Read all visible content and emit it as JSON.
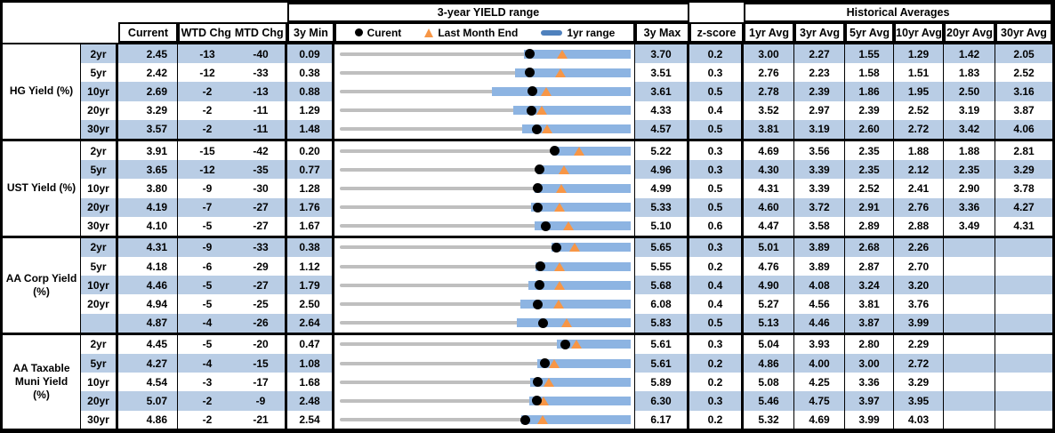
{
  "colors": {
    "stripe": "#B9CDE5",
    "bar": "#8DB4E2",
    "legend_bar": "#4F81BD",
    "triangle": "#F79646",
    "track": "#BFBFBF"
  },
  "chart_data": {
    "type": "table",
    "header": {
      "range_title": "3-year YIELD range",
      "hist_title": "Historical Averages",
      "current": "Current",
      "wtd_chg": "WTD Chg",
      "mtd_chg": "MTD Chg",
      "min_3y": "3y Min",
      "max_3y": "3y Max",
      "z_score": "z-score",
      "avg_cols": [
        "1yr Avg",
        "3yr Avg",
        "5yr Avg",
        "10yr Avg",
        "20yr Avg",
        "30yr Avg"
      ]
    },
    "legend": {
      "current": "Curent",
      "last_month_end": "Last Month End",
      "range": "1yr range"
    },
    "groups": [
      {
        "label": "HG Yield (%)",
        "rows": [
          {
            "tenor": "2yr",
            "current": "2.45",
            "wtd_chg": "-13",
            "mtd_chg": "-40",
            "min_3y": "0.09",
            "max_3y": "3.70",
            "z_score": "0.2",
            "avgs": [
              "3.00",
              "2.27",
              "1.55",
              "1.29",
              "1.42",
              "2.05"
            ],
            "range": {
              "min": 0.09,
              "max": 3.7,
              "bar_lo": 2.38,
              "bar_hi": 3.7,
              "current": 2.45,
              "last_month_end": 2.85
            }
          },
          {
            "tenor": "5yr",
            "current": "2.42",
            "wtd_chg": "-12",
            "mtd_chg": "-33",
            "min_3y": "0.38",
            "max_3y": "3.51",
            "z_score": "0.3",
            "avgs": [
              "2.76",
              "2.23",
              "1.58",
              "1.51",
              "1.83",
              "2.52"
            ],
            "range": {
              "min": 0.38,
              "max": 3.51,
              "bar_lo": 2.27,
              "bar_hi": 3.51,
              "current": 2.42,
              "last_month_end": 2.75
            }
          },
          {
            "tenor": "10yr",
            "current": "2.69",
            "wtd_chg": "-2",
            "mtd_chg": "-13",
            "min_3y": "0.88",
            "max_3y": "3.61",
            "z_score": "0.5",
            "avgs": [
              "2.78",
              "2.39",
              "1.86",
              "1.95",
              "2.50",
              "3.16"
            ],
            "range": {
              "min": 0.88,
              "max": 3.61,
              "bar_lo": 2.31,
              "bar_hi": 3.61,
              "current": 2.69,
              "last_month_end": 2.82
            }
          },
          {
            "tenor": "20yr",
            "current": "3.29",
            "wtd_chg": "-2",
            "mtd_chg": "-11",
            "min_3y": "1.29",
            "max_3y": "4.33",
            "z_score": "0.4",
            "avgs": [
              "3.52",
              "2.97",
              "2.39",
              "2.52",
              "3.19",
              "3.87"
            ],
            "range": {
              "min": 1.29,
              "max": 4.33,
              "bar_lo": 3.1,
              "bar_hi": 4.33,
              "current": 3.29,
              "last_month_end": 3.4
            }
          },
          {
            "tenor": "30yr",
            "current": "3.57",
            "wtd_chg": "-2",
            "mtd_chg": "-11",
            "min_3y": "1.48",
            "max_3y": "4.57",
            "z_score": "0.5",
            "avgs": [
              "3.81",
              "3.19",
              "2.60",
              "2.72",
              "3.42",
              "4.06"
            ],
            "range": {
              "min": 1.48,
              "max": 4.57,
              "bar_lo": 3.42,
              "bar_hi": 4.57,
              "current": 3.57,
              "last_month_end": 3.68
            }
          }
        ]
      },
      {
        "label": "UST Yield (%)",
        "rows": [
          {
            "tenor": "2yr",
            "current": "3.91",
            "wtd_chg": "-15",
            "mtd_chg": "-42",
            "min_3y": "0.20",
            "max_3y": "5.22",
            "z_score": "0.3",
            "avgs": [
              "4.69",
              "3.56",
              "2.35",
              "1.88",
              "1.88",
              "2.81"
            ],
            "range": {
              "min": 0.2,
              "max": 5.22,
              "bar_lo": 3.87,
              "bar_hi": 5.22,
              "current": 3.91,
              "last_month_end": 4.33
            }
          },
          {
            "tenor": "5yr",
            "current": "3.65",
            "wtd_chg": "-12",
            "mtd_chg": "-35",
            "min_3y": "0.77",
            "max_3y": "4.96",
            "z_score": "0.3",
            "avgs": [
              "4.30",
              "3.39",
              "2.35",
              "2.12",
              "2.35",
              "3.29"
            ],
            "range": {
              "min": 0.77,
              "max": 4.96,
              "bar_lo": 3.62,
              "bar_hi": 4.96,
              "current": 3.65,
              "last_month_end": 4.0
            }
          },
          {
            "tenor": "10yr",
            "current": "3.80",
            "wtd_chg": "-9",
            "mtd_chg": "-30",
            "min_3y": "1.28",
            "max_3y": "4.99",
            "z_score": "0.5",
            "avgs": [
              "4.31",
              "3.39",
              "2.52",
              "2.41",
              "2.90",
              "3.78"
            ],
            "range": {
              "min": 1.28,
              "max": 4.99,
              "bar_lo": 3.77,
              "bar_hi": 4.99,
              "current": 3.8,
              "last_month_end": 4.1
            }
          },
          {
            "tenor": "20yr",
            "current": "4.19",
            "wtd_chg": "-7",
            "mtd_chg": "-27",
            "min_3y": "1.76",
            "max_3y": "5.33",
            "z_score": "0.5",
            "avgs": [
              "4.60",
              "3.72",
              "2.91",
              "2.76",
              "3.36",
              "4.27"
            ],
            "range": {
              "min": 1.76,
              "max": 5.33,
              "bar_lo": 4.11,
              "bar_hi": 5.33,
              "current": 4.19,
              "last_month_end": 4.46
            }
          },
          {
            "tenor": "30yr",
            "current": "4.10",
            "wtd_chg": "-5",
            "mtd_chg": "-27",
            "min_3y": "1.67",
            "max_3y": "5.10",
            "z_score": "0.6",
            "avgs": [
              "4.47",
              "3.58",
              "2.89",
              "2.88",
              "3.49",
              "4.31"
            ],
            "range": {
              "min": 1.67,
              "max": 5.1,
              "bar_lo": 3.97,
              "bar_hi": 5.1,
              "current": 4.1,
              "last_month_end": 4.37
            }
          }
        ]
      },
      {
        "label": "AA Corp Yield (%)",
        "rows": [
          {
            "tenor": "2yr",
            "current": "4.31",
            "wtd_chg": "-9",
            "mtd_chg": "-33",
            "min_3y": "0.38",
            "max_3y": "5.65",
            "z_score": "0.3",
            "avgs": [
              "5.01",
              "3.89",
              "2.68",
              "2.26",
              "",
              ""
            ],
            "range": {
              "min": 0.38,
              "max": 5.65,
              "bar_lo": 4.22,
              "bar_hi": 5.65,
              "current": 4.31,
              "last_month_end": 4.64
            }
          },
          {
            "tenor": "5yr",
            "current": "4.18",
            "wtd_chg": "-6",
            "mtd_chg": "-29",
            "min_3y": "1.12",
            "max_3y": "5.55",
            "z_score": "0.2",
            "avgs": [
              "4.76",
              "3.89",
              "2.87",
              "2.70",
              "",
              ""
            ],
            "range": {
              "min": 1.12,
              "max": 5.55,
              "bar_lo": 4.1,
              "bar_hi": 5.55,
              "current": 4.18,
              "last_month_end": 4.47
            }
          },
          {
            "tenor": "10yr",
            "current": "4.46",
            "wtd_chg": "-5",
            "mtd_chg": "-27",
            "min_3y": "1.79",
            "max_3y": "5.68",
            "z_score": "0.4",
            "avgs": [
              "4.90",
              "4.08",
              "3.24",
              "3.20",
              "",
              ""
            ],
            "range": {
              "min": 1.79,
              "max": 5.68,
              "bar_lo": 4.31,
              "bar_hi": 5.68,
              "current": 4.46,
              "last_month_end": 4.73
            }
          },
          {
            "tenor": "20yr",
            "current": "4.94",
            "wtd_chg": "-5",
            "mtd_chg": "-25",
            "min_3y": "2.50",
            "max_3y": "6.08",
            "z_score": "0.4",
            "avgs": [
              "5.27",
              "4.56",
              "3.81",
              "3.76",
              "",
              ""
            ],
            "range": {
              "min": 2.5,
              "max": 6.08,
              "bar_lo": 4.72,
              "bar_hi": 6.08,
              "current": 4.94,
              "last_month_end": 5.19
            }
          },
          {
            "tenor": "",
            "current": "4.87",
            "wtd_chg": "-4",
            "mtd_chg": "-26",
            "min_3y": "2.64",
            "max_3y": "5.83",
            "z_score": "0.5",
            "avgs": [
              "5.13",
              "4.46",
              "3.87",
              "3.99",
              "",
              ""
            ],
            "range": {
              "min": 2.64,
              "max": 5.83,
              "bar_lo": 4.58,
              "bar_hi": 5.83,
              "current": 4.87,
              "last_month_end": 5.13
            }
          }
        ]
      },
      {
        "label": "AA Taxable Muni Yield (%)",
        "rows": [
          {
            "tenor": "2yr",
            "current": "4.45",
            "wtd_chg": "-5",
            "mtd_chg": "-20",
            "min_3y": "0.47",
            "max_3y": "5.61",
            "z_score": "0.3",
            "avgs": [
              "5.04",
              "3.93",
              "2.80",
              "2.29",
              "",
              ""
            ],
            "range": {
              "min": 0.47,
              "max": 5.61,
              "bar_lo": 4.3,
              "bar_hi": 5.61,
              "current": 4.45,
              "last_month_end": 4.65
            }
          },
          {
            "tenor": "5yr",
            "current": "4.27",
            "wtd_chg": "-4",
            "mtd_chg": "-15",
            "min_3y": "1.08",
            "max_3y": "5.61",
            "z_score": "0.2",
            "avgs": [
              "4.86",
              "4.00",
              "3.00",
              "2.72",
              "",
              ""
            ],
            "range": {
              "min": 1.08,
              "max": 5.61,
              "bar_lo": 4.15,
              "bar_hi": 5.61,
              "current": 4.27,
              "last_month_end": 4.42
            }
          },
          {
            "tenor": "10yr",
            "current": "4.54",
            "wtd_chg": "-3",
            "mtd_chg": "-17",
            "min_3y": "1.68",
            "max_3y": "5.89",
            "z_score": "0.2",
            "avgs": [
              "5.08",
              "4.25",
              "3.36",
              "3.29",
              "",
              ""
            ],
            "range": {
              "min": 1.68,
              "max": 5.89,
              "bar_lo": 4.44,
              "bar_hi": 5.89,
              "current": 4.54,
              "last_month_end": 4.71
            }
          },
          {
            "tenor": "20yr",
            "current": "5.07",
            "wtd_chg": "-2",
            "mtd_chg": "-9",
            "min_3y": "2.48",
            "max_3y": "6.30",
            "z_score": "0.3",
            "avgs": [
              "5.46",
              "4.75",
              "3.97",
              "3.95",
              "",
              ""
            ],
            "range": {
              "min": 2.48,
              "max": 6.3,
              "bar_lo": 4.97,
              "bar_hi": 6.3,
              "current": 5.07,
              "last_month_end": 5.16
            }
          },
          {
            "tenor": "30yr",
            "current": "4.86",
            "wtd_chg": "-2",
            "mtd_chg": "-21",
            "min_3y": "2.54",
            "max_3y": "6.17",
            "z_score": "0.2",
            "avgs": [
              "5.32",
              "4.69",
              "3.99",
              "4.03",
              "",
              ""
            ],
            "range": {
              "min": 2.54,
              "max": 6.17,
              "bar_lo": 4.81,
              "bar_hi": 6.17,
              "current": 4.86,
              "last_month_end": 5.07
            }
          }
        ]
      }
    ]
  }
}
